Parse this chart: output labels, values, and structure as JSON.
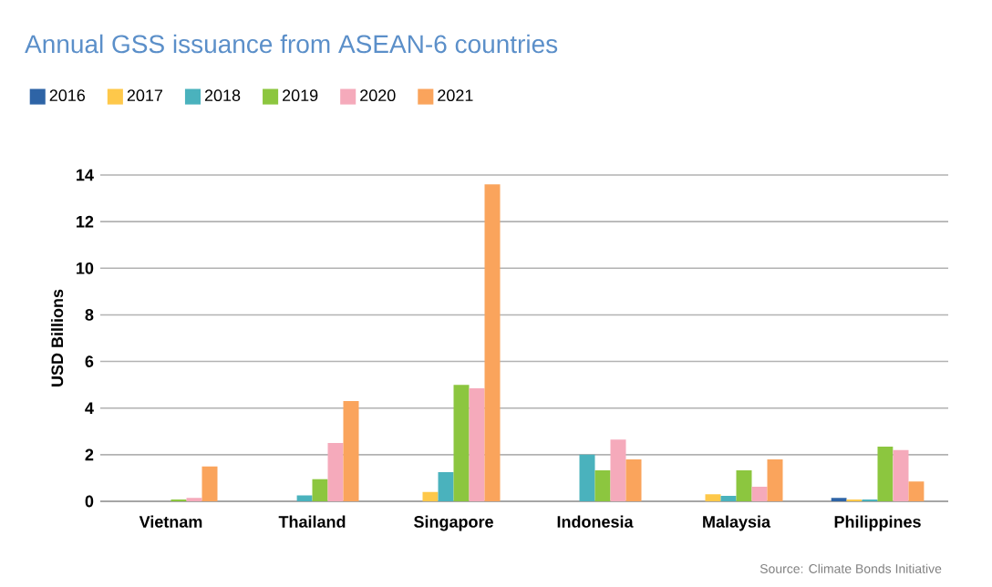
{
  "chart_data": {
    "type": "bar",
    "title": "Annual GSS issuance from ASEAN-6 countries",
    "ylabel": "USD Billions",
    "categories": [
      "Vietnam",
      "Thailand",
      "Singapore",
      "Indonesia",
      "Malaysia",
      "Philippines"
    ],
    "series": [
      {
        "name": "2016",
        "color": "#2e64a6",
        "values": [
          null,
          null,
          null,
          null,
          null,
          0.15
        ]
      },
      {
        "name": "2017",
        "color": "#fec84a",
        "values": [
          null,
          null,
          0.4,
          null,
          0.3,
          0.08
        ]
      },
      {
        "name": "2018",
        "color": "#4ab2bd",
        "values": [
          null,
          0.25,
          1.25,
          2.0,
          0.23,
          0.08
        ]
      },
      {
        "name": "2019",
        "color": "#8cc63f",
        "values": [
          0.08,
          0.95,
          5.0,
          1.33,
          1.33,
          2.35
        ]
      },
      {
        "name": "2020",
        "color": "#f5aabb",
        "values": [
          0.15,
          2.5,
          4.85,
          2.65,
          0.63,
          2.2
        ]
      },
      {
        "name": "2021",
        "color": "#faa45c",
        "values": [
          1.5,
          4.3,
          13.6,
          1.8,
          1.8,
          0.85
        ]
      }
    ],
    "ylim": [
      0,
      14
    ],
    "yticks": [
      0,
      2,
      4,
      6,
      8,
      10,
      12,
      14
    ],
    "grid": "y",
    "legend": "top left",
    "annotations": [
      "Source: Climate Bonds Initiative"
    ]
  }
}
